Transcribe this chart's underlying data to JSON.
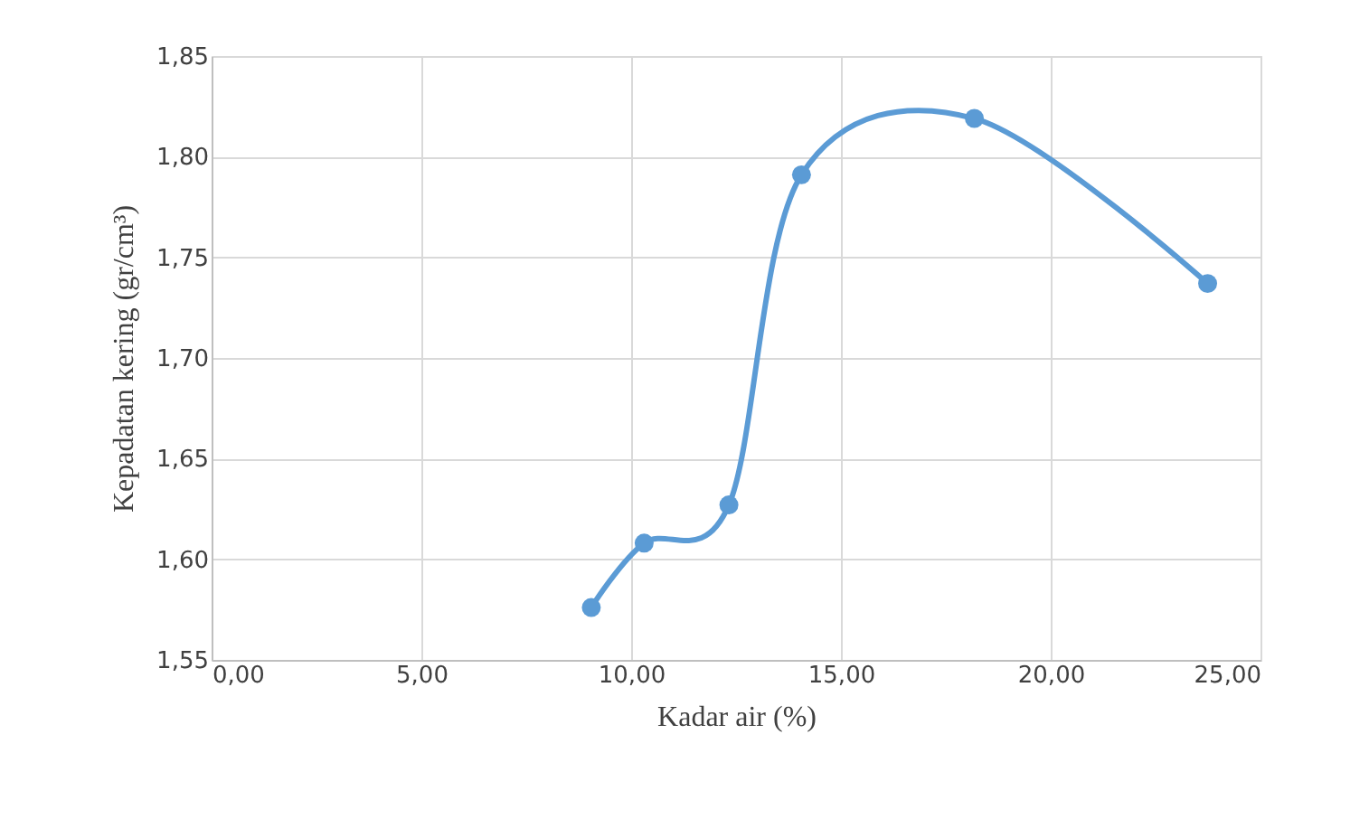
{
  "chart_data": {
    "type": "line",
    "xlabel": "Kadar air (%)",
    "ylabel": "Kepadatan kering  (gr/cm³)",
    "x": [
      9.05,
      10.31,
      12.33,
      14.06,
      18.18,
      23.74
    ],
    "series": [
      {
        "color": "#5b9bd5",
        "values": [
          1.576,
          1.608,
          1.627,
          1.791,
          1.819,
          1.737
        ]
      }
    ],
    "xlim": [
      0,
      25
    ],
    "ylim": [
      1.55,
      1.85
    ],
    "xticks": [
      {
        "value": 0,
        "label": "0,00"
      },
      {
        "value": 5,
        "label": "5,00"
      },
      {
        "value": 10,
        "label": "10,00"
      },
      {
        "value": 15,
        "label": "15,00"
      },
      {
        "value": 20,
        "label": "20,00"
      },
      {
        "value": 25,
        "label": "25,00"
      }
    ],
    "yticks": [
      {
        "value": 1.55,
        "label": "1,55"
      },
      {
        "value": 1.6,
        "label": "1,60"
      },
      {
        "value": 1.65,
        "label": "1,65"
      },
      {
        "value": 1.7,
        "label": "1,70"
      },
      {
        "value": 1.75,
        "label": "1,75"
      },
      {
        "value": 1.8,
        "label": "1,80"
      },
      {
        "value": 1.85,
        "label": "1,85"
      }
    ],
    "grid": true,
    "marker": "circle",
    "line_style": "solid"
  }
}
